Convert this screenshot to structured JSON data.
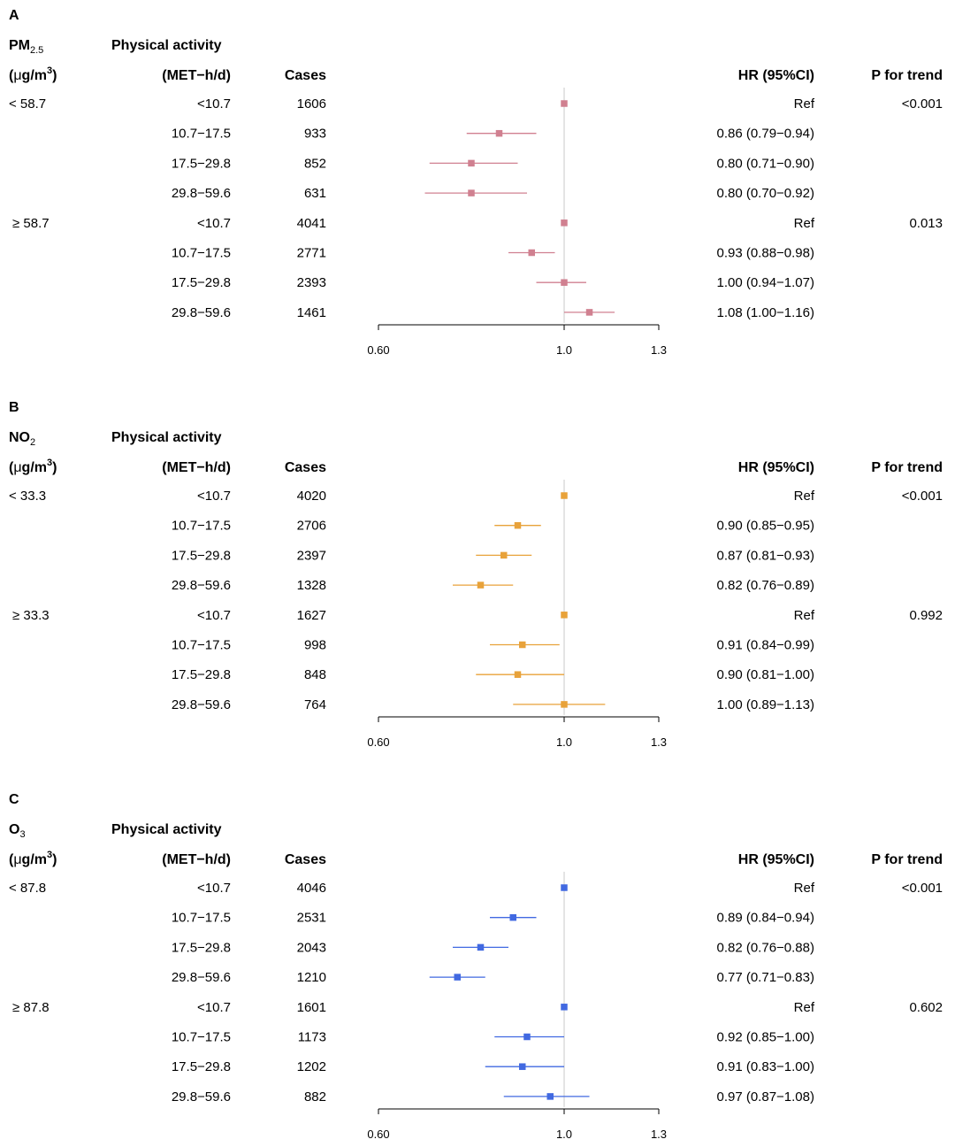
{
  "chart_data": [
    {
      "type": "forest",
      "panel_label": "A",
      "pollutant": "PM",
      "pollutant_sub": "2.5",
      "unit_prefix": "(",
      "unit_mu": "μ",
      "unit_main": "g/m",
      "unit_sup": "3",
      "unit_suffix": ")",
      "col_activity_1": "Physical activity",
      "col_activity_2": "(MET−h/d)",
      "col_cases": "Cases",
      "col_hr": "HR (95%CI)",
      "col_p": "P for trend",
      "color": "#d08090",
      "axis": {
        "ticks": [
          0.6,
          1.0,
          1.3
        ],
        "tick_labels": [
          "0.60",
          "1.0",
          "1.3"
        ],
        "ref": 1.0
      },
      "groups": [
        {
          "label": "< 58.7",
          "p_trend": "<0.001",
          "rows": [
            {
              "activity": "<10.7",
              "cases": "1606",
              "hr": 1.0,
              "lo": 1.0,
              "hi": 1.0,
              "hr_text": "Ref"
            },
            {
              "activity": "10.7−17.5",
              "cases": "933",
              "hr": 0.86,
              "lo": 0.79,
              "hi": 0.94,
              "hr_text": "0.86 (0.79−0.94)"
            },
            {
              "activity": "17.5−29.8",
              "cases": "852",
              "hr": 0.8,
              "lo": 0.71,
              "hi": 0.9,
              "hr_text": "0.80 (0.71−0.90)"
            },
            {
              "activity": "29.8−59.6",
              "cases": "631",
              "hr": 0.8,
              "lo": 0.7,
              "hi": 0.92,
              "hr_text": "0.80 (0.70−0.92)"
            }
          ]
        },
        {
          "label": "≥ 58.7",
          "p_trend": "0.013",
          "rows": [
            {
              "activity": "<10.7",
              "cases": "4041",
              "hr": 1.0,
              "lo": 1.0,
              "hi": 1.0,
              "hr_text": "Ref"
            },
            {
              "activity": "10.7−17.5",
              "cases": "2771",
              "hr": 0.93,
              "lo": 0.88,
              "hi": 0.98,
              "hr_text": "0.93 (0.88−0.98)"
            },
            {
              "activity": "17.5−29.8",
              "cases": "2393",
              "hr": 1.0,
              "lo": 0.94,
              "hi": 1.07,
              "hr_text": "1.00 (0.94−1.07)"
            },
            {
              "activity": "29.8−59.6",
              "cases": "1461",
              "hr": 1.08,
              "lo": 1.0,
              "hi": 1.16,
              "hr_text": "1.08 (1.00−1.16)"
            }
          ]
        }
      ]
    },
    {
      "type": "forest",
      "panel_label": "B",
      "pollutant": "NO",
      "pollutant_sub": "2",
      "unit_prefix": "(",
      "unit_mu": "μ",
      "unit_main": "g/m",
      "unit_sup": "3",
      "unit_suffix": ")",
      "col_activity_1": "Physical activity",
      "col_activity_2": "(MET−h/d)",
      "col_cases": "Cases",
      "col_hr": "HR (95%CI)",
      "col_p": "P for trend",
      "color": "#e8a23a",
      "axis": {
        "ticks": [
          0.6,
          1.0,
          1.3
        ],
        "tick_labels": [
          "0.60",
          "1.0",
          "1.3"
        ],
        "ref": 1.0
      },
      "groups": [
        {
          "label": "< 33.3",
          "p_trend": "<0.001",
          "rows": [
            {
              "activity": "<10.7",
              "cases": "4020",
              "hr": 1.0,
              "lo": 1.0,
              "hi": 1.0,
              "hr_text": "Ref"
            },
            {
              "activity": "10.7−17.5",
              "cases": "2706",
              "hr": 0.9,
              "lo": 0.85,
              "hi": 0.95,
              "hr_text": "0.90 (0.85−0.95)"
            },
            {
              "activity": "17.5−29.8",
              "cases": "2397",
              "hr": 0.87,
              "lo": 0.81,
              "hi": 0.93,
              "hr_text": "0.87 (0.81−0.93)"
            },
            {
              "activity": "29.8−59.6",
              "cases": "1328",
              "hr": 0.82,
              "lo": 0.76,
              "hi": 0.89,
              "hr_text": "0.82 (0.76−0.89)"
            }
          ]
        },
        {
          "label": "≥ 33.3",
          "p_trend": "0.992",
          "rows": [
            {
              "activity": "<10.7",
              "cases": "1627",
              "hr": 1.0,
              "lo": 1.0,
              "hi": 1.0,
              "hr_text": "Ref"
            },
            {
              "activity": "10.7−17.5",
              "cases": "998",
              "hr": 0.91,
              "lo": 0.84,
              "hi": 0.99,
              "hr_text": "0.91 (0.84−0.99)"
            },
            {
              "activity": "17.5−29.8",
              "cases": "848",
              "hr": 0.9,
              "lo": 0.81,
              "hi": 1.0,
              "hr_text": "0.90 (0.81−1.00)"
            },
            {
              "activity": "29.8−59.6",
              "cases": "764",
              "hr": 1.0,
              "lo": 0.89,
              "hi": 1.13,
              "hr_text": "1.00 (0.89−1.13)"
            }
          ]
        }
      ]
    },
    {
      "type": "forest",
      "panel_label": "C",
      "pollutant": "O",
      "pollutant_sub": "3",
      "unit_prefix": "(",
      "unit_mu": "μ",
      "unit_main": "g/m",
      "unit_sup": "3",
      "unit_suffix": ")",
      "col_activity_1": "Physical activity",
      "col_activity_2": "(MET−h/d)",
      "col_cases": "Cases",
      "col_hr": "HR (95%CI)",
      "col_p": "P for trend",
      "color": "#4169e1",
      "axis": {
        "ticks": [
          0.6,
          1.0,
          1.3
        ],
        "tick_labels": [
          "0.60",
          "1.0",
          "1.3"
        ],
        "ref": 1.0
      },
      "groups": [
        {
          "label": "< 87.8",
          "p_trend": "<0.001",
          "rows": [
            {
              "activity": "<10.7",
              "cases": "4046",
              "hr": 1.0,
              "lo": 1.0,
              "hi": 1.0,
              "hr_text": "Ref"
            },
            {
              "activity": "10.7−17.5",
              "cases": "2531",
              "hr": 0.89,
              "lo": 0.84,
              "hi": 0.94,
              "hr_text": "0.89 (0.84−0.94)"
            },
            {
              "activity": "17.5−29.8",
              "cases": "2043",
              "hr": 0.82,
              "lo": 0.76,
              "hi": 0.88,
              "hr_text": "0.82 (0.76−0.88)"
            },
            {
              "activity": "29.8−59.6",
              "cases": "1210",
              "hr": 0.77,
              "lo": 0.71,
              "hi": 0.83,
              "hr_text": "0.77 (0.71−0.83)"
            }
          ]
        },
        {
          "label": "≥ 87.8",
          "p_trend": "0.602",
          "rows": [
            {
              "activity": "<10.7",
              "cases": "1601",
              "hr": 1.0,
              "lo": 1.0,
              "hi": 1.0,
              "hr_text": "Ref"
            },
            {
              "activity": "10.7−17.5",
              "cases": "1173",
              "hr": 0.92,
              "lo": 0.85,
              "hi": 1.0,
              "hr_text": "0.92 (0.85−1.00)"
            },
            {
              "activity": "17.5−29.8",
              "cases": "1202",
              "hr": 0.91,
              "lo": 0.83,
              "hi": 1.0,
              "hr_text": "0.91 (0.83−1.00)"
            },
            {
              "activity": "29.8−59.6",
              "cases": "882",
              "hr": 0.97,
              "lo": 0.87,
              "hi": 1.08,
              "hr_text": "0.97 (0.87−1.08)"
            }
          ]
        }
      ]
    }
  ]
}
